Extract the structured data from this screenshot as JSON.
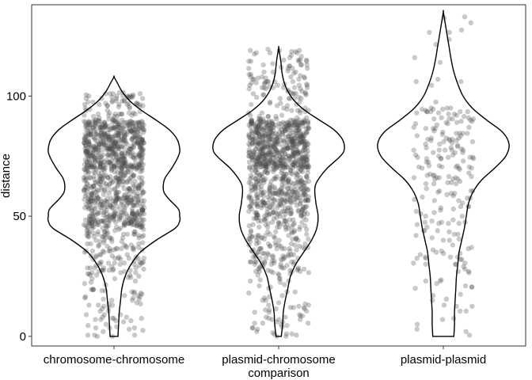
{
  "chart_data": {
    "type": "violin",
    "xlabel": "comparison",
    "ylabel": "distance",
    "categories": [
      "chromosome-chromosome",
      "plasmid-chromosome",
      "plasmid-plasmid"
    ],
    "ylim": [
      -4,
      138
    ],
    "yticks": [
      0,
      50,
      100
    ],
    "grid": false,
    "point_color": "#4d4d4d",
    "violin_stroke": "#000000",
    "violins": [
      {
        "category": "chromosome-chromosome",
        "min": 0,
        "max": 108,
        "density": [
          [
            0,
            0.06
          ],
          [
            5,
            0.07
          ],
          [
            10,
            0.08
          ],
          [
            15,
            0.1
          ],
          [
            20,
            0.12
          ],
          [
            25,
            0.17
          ],
          [
            30,
            0.26
          ],
          [
            35,
            0.4
          ],
          [
            40,
            0.64
          ],
          [
            45,
            0.93
          ],
          [
            48,
            1.0
          ],
          [
            50,
            1.0
          ],
          [
            53,
            0.98
          ],
          [
            57,
            0.84
          ],
          [
            60,
            0.76
          ],
          [
            63,
            0.75
          ],
          [
            66,
            0.78
          ],
          [
            70,
            0.88
          ],
          [
            75,
            0.98
          ],
          [
            78,
            1.0
          ],
          [
            82,
            0.96
          ],
          [
            86,
            0.84
          ],
          [
            90,
            0.64
          ],
          [
            94,
            0.42
          ],
          [
            98,
            0.24
          ],
          [
            102,
            0.12
          ],
          [
            105,
            0.06
          ],
          [
            108,
            0
          ]
        ],
        "points": [
          {
            "y_min": 0,
            "y_max": 102,
            "count": 1200,
            "dist": [
              [
                0,
                25,
                0.06
              ],
              [
                25,
                45,
                0.1
              ],
              [
                45,
                58,
                0.22
              ],
              [
                58,
                70,
                0.16
              ],
              [
                70,
                90,
                0.4
              ],
              [
                90,
                102,
                0.06
              ]
            ]
          }
        ]
      },
      {
        "category": "plasmid-chromosome",
        "min": 0,
        "max": 120,
        "density": [
          [
            0,
            0.04
          ],
          [
            5,
            0.06
          ],
          [
            10,
            0.07
          ],
          [
            15,
            0.1
          ],
          [
            20,
            0.14
          ],
          [
            25,
            0.18
          ],
          [
            30,
            0.26
          ],
          [
            35,
            0.38
          ],
          [
            40,
            0.5
          ],
          [
            45,
            0.58
          ],
          [
            50,
            0.6
          ],
          [
            55,
            0.57
          ],
          [
            60,
            0.55
          ],
          [
            63,
            0.56
          ],
          [
            66,
            0.62
          ],
          [
            70,
            0.74
          ],
          [
            75,
            0.94
          ],
          [
            78,
            1.0
          ],
          [
            82,
            0.97
          ],
          [
            86,
            0.84
          ],
          [
            90,
            0.62
          ],
          [
            94,
            0.4
          ],
          [
            98,
            0.24
          ],
          [
            102,
            0.14
          ],
          [
            106,
            0.08
          ],
          [
            110,
            0.05
          ],
          [
            115,
            0.03
          ],
          [
            120,
            0
          ]
        ],
        "points": [
          {
            "y_min": 0,
            "y_max": 120,
            "count": 1200,
            "dist": [
              [
                0,
                25,
                0.04
              ],
              [
                25,
                50,
                0.14
              ],
              [
                50,
                70,
                0.22
              ],
              [
                70,
                90,
                0.5
              ],
              [
                90,
                120,
                0.1
              ]
            ]
          }
        ]
      },
      {
        "category": "plasmid-plasmid",
        "min": 0,
        "max": 135,
        "density": [
          [
            0,
            0.16
          ],
          [
            5,
            0.17
          ],
          [
            10,
            0.17
          ],
          [
            15,
            0.18
          ],
          [
            20,
            0.19
          ],
          [
            25,
            0.2
          ],
          [
            30,
            0.22
          ],
          [
            35,
            0.24
          ],
          [
            40,
            0.28
          ],
          [
            45,
            0.32
          ],
          [
            50,
            0.35
          ],
          [
            55,
            0.38
          ],
          [
            60,
            0.45
          ],
          [
            65,
            0.58
          ],
          [
            70,
            0.78
          ],
          [
            75,
            0.95
          ],
          [
            80,
            1.0
          ],
          [
            85,
            0.9
          ],
          [
            90,
            0.66
          ],
          [
            95,
            0.44
          ],
          [
            100,
            0.3
          ],
          [
            105,
            0.22
          ],
          [
            110,
            0.16
          ],
          [
            115,
            0.12
          ],
          [
            120,
            0.09
          ],
          [
            125,
            0.06
          ],
          [
            130,
            0.03
          ],
          [
            135,
            0
          ]
        ],
        "points": [
          {
            "y_min": 0,
            "y_max": 135,
            "count": 230,
            "dist": [
              [
                0,
                40,
                0.22
              ],
              [
                40,
                65,
                0.2
              ],
              [
                65,
                95,
                0.48
              ],
              [
                95,
                135,
                0.1
              ]
            ]
          }
        ]
      }
    ]
  }
}
